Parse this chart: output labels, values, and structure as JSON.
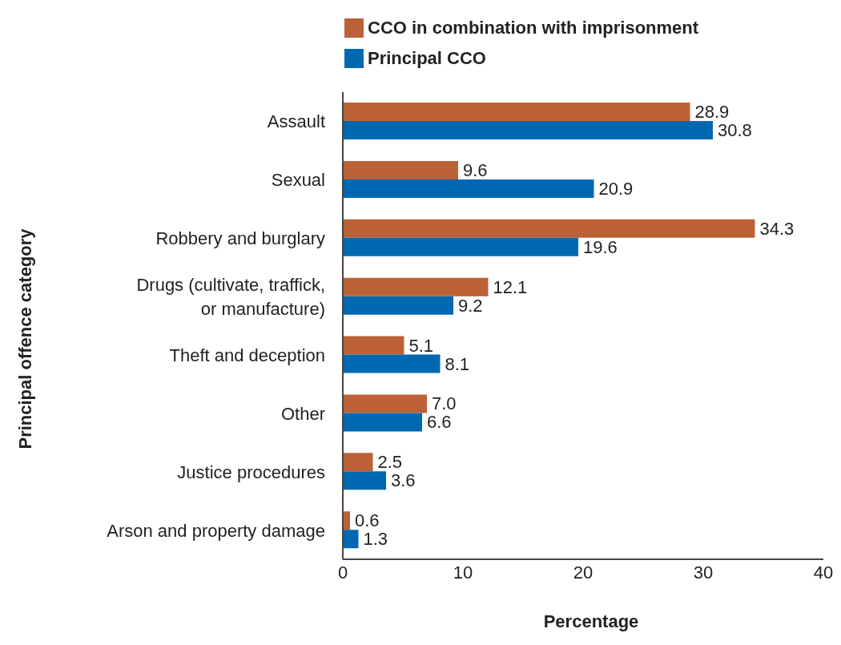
{
  "chart_data": {
    "type": "bar",
    "orientation": "horizontal",
    "xlabel": "Percentage",
    "ylabel": "Principal offence category",
    "categories": [
      "Assault",
      "Sexual",
      "Robbery and burglary",
      "Drugs (cultivate, traffick, or manufacture)",
      "Theft and deception",
      "Other",
      "Justice procedures",
      "Arson and property damage"
    ],
    "series": [
      {
        "name": "CCO in combination with imprisonment",
        "color": "#bc6137",
        "values": [
          28.9,
          9.6,
          34.3,
          12.1,
          5.1,
          7.0,
          2.5,
          0.6
        ],
        "value_labels": [
          "28.9",
          "9.6",
          "34.3",
          "12.1",
          "5.1",
          "7.0",
          "2.5",
          "0.6"
        ]
      },
      {
        "name": "Principal CCO",
        "color": "#0068b0",
        "values": [
          30.8,
          20.9,
          19.6,
          9.2,
          8.1,
          6.6,
          3.6,
          1.3
        ],
        "value_labels": [
          "30.8",
          "20.9",
          "19.6",
          "9.2",
          "8.1",
          "6.6",
          "3.6",
          "1.3"
        ]
      }
    ],
    "xlim": [
      0,
      40
    ],
    "xticks": [
      0,
      10,
      20,
      30,
      40
    ],
    "legend": "top"
  }
}
